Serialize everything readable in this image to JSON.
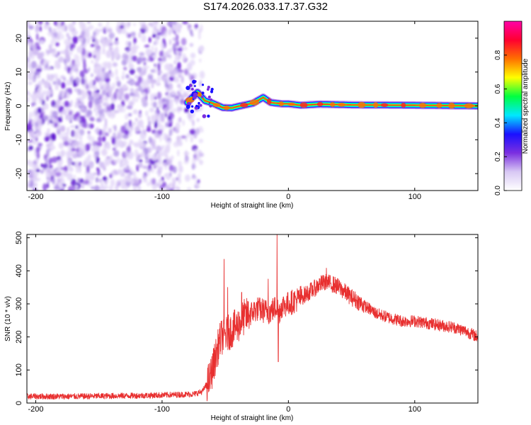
{
  "title": "S174.2026.033.17.37.G32",
  "chart_data": [
    {
      "type": "heatmap",
      "panel": "spectrogram",
      "xlabel": "Height of straight line (km)",
      "ylabel": "Frequency (Hz)",
      "xlim": [
        -207,
        150
      ],
      "ylim": [
        -25,
        25
      ],
      "xticks": [
        -200,
        -100,
        0,
        100
      ],
      "yticks": [
        -20,
        -10,
        0,
        10,
        20
      ],
      "colorbar": {
        "label": "Normalized spectral amplitude",
        "range": [
          0,
          1
        ],
        "ticks": [
          "0.0",
          "0.2",
          "0.4",
          "0.6",
          "0.8"
        ],
        "colormap": [
          "#ffffff",
          "#d8c8f4",
          "#7b2fe0",
          "#1a10ff",
          "#00e8ff",
          "#00ff40",
          "#ffff00",
          "#ff7000",
          "#ff0030",
          "#ff00a8"
        ]
      },
      "noise_region_x": [
        -207,
        -68
      ],
      "carrier_trace": [
        {
          "x": -80,
          "y": 1.0
        },
        {
          "x": -72,
          "y": 4.0
        },
        {
          "x": -66,
          "y": 1.5
        },
        {
          "x": -60,
          "y": 0.8
        },
        {
          "x": -52,
          "y": -0.5
        },
        {
          "x": -45,
          "y": -0.6
        },
        {
          "x": -38,
          "y": 0.0
        },
        {
          "x": -28,
          "y": 0.8
        },
        {
          "x": -20,
          "y": 2.5
        },
        {
          "x": -14,
          "y": 1.0
        },
        {
          "x": -5,
          "y": 0.6
        },
        {
          "x": 0,
          "y": 0.6
        },
        {
          "x": 10,
          "y": 0.2
        },
        {
          "x": 25,
          "y": 0.5
        },
        {
          "x": 50,
          "y": 0.3
        },
        {
          "x": 100,
          "y": 0.2
        },
        {
          "x": 150,
          "y": 0.0
        }
      ]
    },
    {
      "type": "line",
      "panel": "snr",
      "xlabel": "Height of straight line (km)",
      "ylabel": "SNR (10 * v/v)",
      "xlim": [
        -207,
        150
      ],
      "ylim": [
        0,
        510
      ],
      "xticks": [
        -200,
        -100,
        0,
        100
      ],
      "yticks": [
        0,
        100,
        200,
        300,
        400,
        500
      ],
      "color": "#e83030",
      "series": [
        {
          "x": [
            -207,
            -190,
            -170,
            -150,
            -130,
            -110,
            -90,
            -75,
            -68,
            -62,
            -57,
            -55,
            -53,
            -50,
            -45,
            -40,
            -35,
            -30,
            -25,
            -20,
            -15,
            -10,
            -9,
            -8,
            -5,
            0,
            10,
            20,
            25,
            30,
            35,
            40,
            45,
            50,
            60,
            70,
            80,
            90,
            100,
            110,
            120,
            130,
            140,
            150
          ],
          "y": [
            20,
            20,
            20,
            21,
            22,
            23,
            25,
            27,
            35,
            75,
            150,
            180,
            200,
            205,
            220,
            235,
            260,
            270,
            285,
            280,
            275,
            290,
            300,
            270,
            295,
            300,
            320,
            345,
            360,
            365,
            360,
            350,
            335,
            320,
            295,
            270,
            258,
            248,
            248,
            242,
            235,
            230,
            218,
            200
          ]
        }
      ],
      "spikes": [
        {
          "x": -51,
          "y": 435
        },
        {
          "x": -48,
          "y": 350
        },
        {
          "x": -37,
          "y": 335
        },
        {
          "x": -16,
          "y": 375
        },
        {
          "x": -9,
          "y": 510
        },
        {
          "x": -8,
          "y": 125
        },
        {
          "x": 30,
          "y": 408
        }
      ]
    }
  ]
}
